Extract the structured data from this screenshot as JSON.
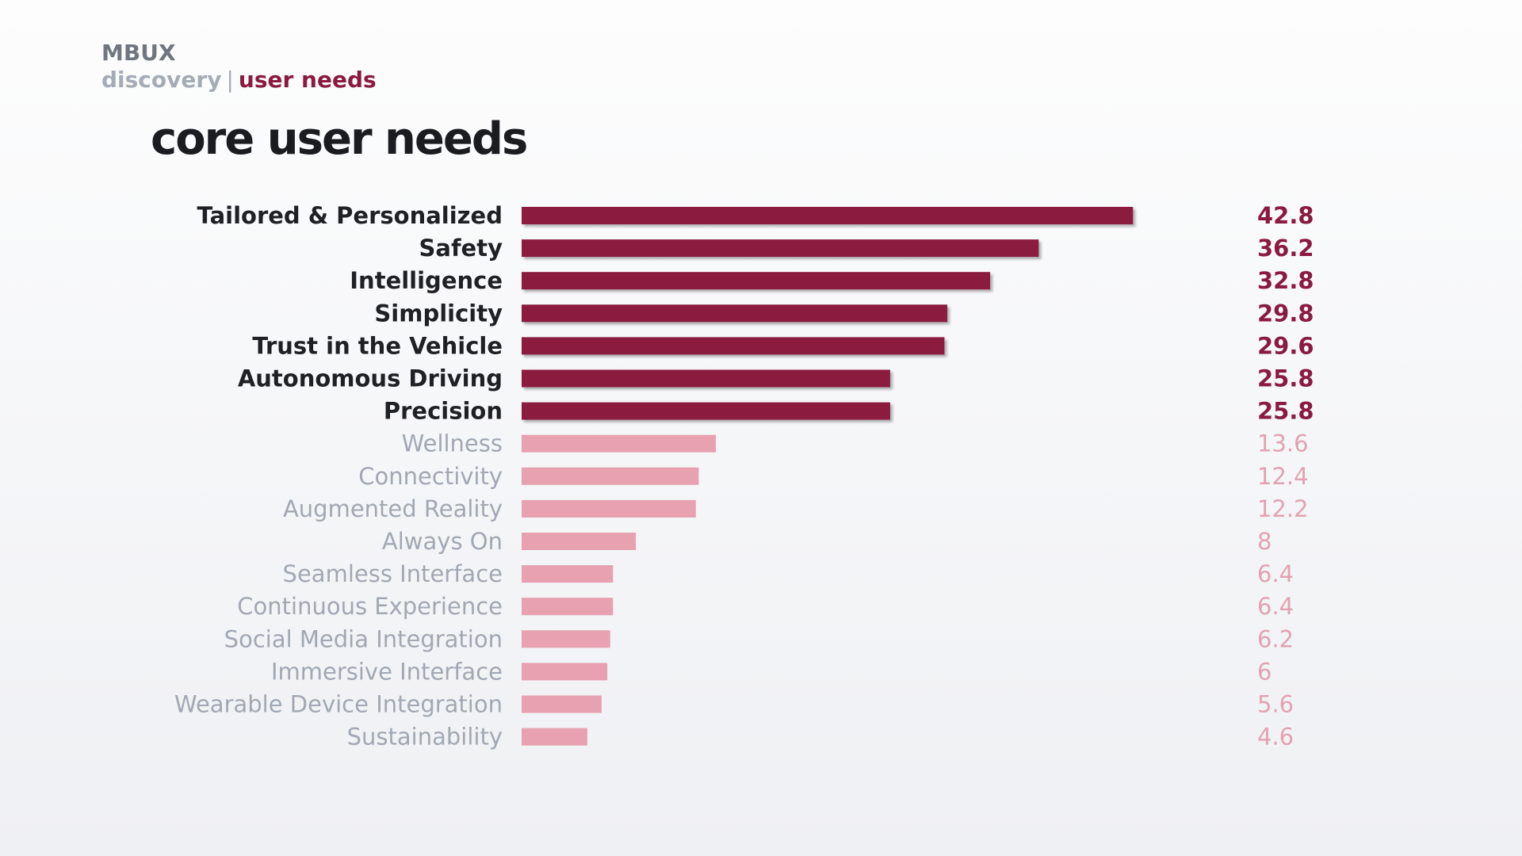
{
  "header": {
    "brand": "MBUX",
    "breadcrumb_section": "discovery",
    "breadcrumb_separator": "|",
    "breadcrumb_current": "user needs"
  },
  "page_title": "core user needs",
  "colors": {
    "strong_bar": "#8b1a40",
    "weak_bar": "#e7a1b0",
    "strong_label": "#1f2024",
    "weak_label": "#a1a8b3"
  },
  "chart_data": {
    "type": "bar",
    "orientation": "horizontal",
    "title": "core user needs",
    "xlim": [
      0,
      50
    ],
    "highlight_count": 7,
    "categories": [
      "Tailored & Personalized",
      "Safety",
      "Intelligence",
      "Simplicity",
      "Trust in the Vehicle",
      "Autonomous Driving",
      "Precision",
      "Wellness",
      "Connectivity",
      "Augmented Reality",
      "Always On",
      "Seamless Interface",
      "Continuous Experience",
      "Social Media Integration",
      "Immersive Interface",
      "Wearable Device Integration",
      "Sustainability"
    ],
    "values": [
      42.8,
      36.2,
      32.8,
      29.8,
      29.6,
      25.8,
      25.8,
      13.6,
      12.4,
      12.2,
      8,
      6.4,
      6.4,
      6.2,
      6,
      5.6,
      4.6
    ],
    "value_labels": [
      "42.8",
      "36.2",
      "32.8",
      "29.8",
      "29.6",
      "25.8",
      "25.8",
      "13.6",
      "12.4",
      "12.2",
      "8",
      "6.4",
      "6.4",
      "6.2",
      "6",
      "5.6",
      "4.6"
    ]
  }
}
